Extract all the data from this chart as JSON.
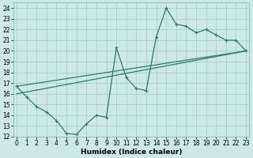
{
  "xlabel": "Humidex (Indice chaleur)",
  "ylabel": "",
  "bg_color": "#cce8e8",
  "grid_color": "#a8d0d0",
  "line_color": "#2d7a6e",
  "line1_x": [
    0,
    1,
    2,
    3,
    4,
    5,
    6,
    7,
    8,
    9,
    10,
    11,
    12,
    13,
    14,
    15,
    16,
    17,
    18,
    19,
    20,
    21,
    22,
    23
  ],
  "line1_y": [
    16.7,
    15.7,
    14.8,
    14.3,
    13.5,
    12.3,
    12.2,
    13.2,
    14.0,
    13.8,
    20.3,
    17.5,
    16.5,
    16.3,
    21.3,
    24.0,
    22.5,
    22.3,
    21.7,
    22.0,
    21.5,
    21.0,
    21.0,
    20.0
  ],
  "line2_x": [
    0,
    23
  ],
  "line2_y": [
    16.7,
    20.0
  ],
  "line3_x": [
    0,
    23
  ],
  "line3_y": [
    16.0,
    20.0
  ],
  "xlim": [
    -0.3,
    23.3
  ],
  "ylim": [
    12,
    24.5
  ],
  "xticks": [
    0,
    1,
    2,
    3,
    4,
    5,
    6,
    7,
    8,
    9,
    10,
    11,
    12,
    13,
    14,
    15,
    16,
    17,
    18,
    19,
    20,
    21,
    22,
    23
  ],
  "yticks": [
    12,
    13,
    14,
    15,
    16,
    17,
    18,
    19,
    20,
    21,
    22,
    23,
    24
  ],
  "tick_fontsize": 5.5,
  "xlabel_fontsize": 6.5
}
